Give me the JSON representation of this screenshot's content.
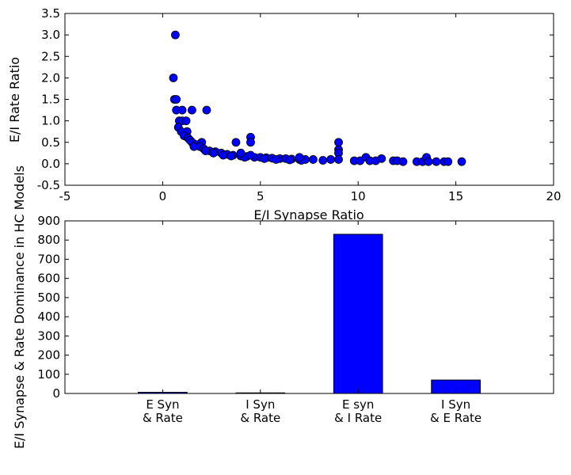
{
  "chart_data": [
    {
      "type": "scatter",
      "xlabel": "E/I Synapse Ratio",
      "ylabel": "E/I Rate Ratio",
      "xlim": [
        -5,
        20
      ],
      "ylim": [
        -0.5,
        3.5
      ],
      "xticks": [
        "-5",
        "0",
        "5",
        "10",
        "15",
        "20"
      ],
      "yticks": [
        "-0.5",
        "0.0",
        "0.5",
        "1.0",
        "1.5",
        "2.0",
        "2.5",
        "3.0",
        "3.5"
      ],
      "grid": false,
      "marker_color": "#0000ff",
      "points": [
        [
          0.55,
          2.0
        ],
        [
          0.65,
          3.0
        ],
        [
          0.6,
          1.5
        ],
        [
          0.7,
          1.5
        ],
        [
          0.7,
          1.25
        ],
        [
          1.0,
          1.25
        ],
        [
          1.5,
          1.25
        ],
        [
          2.25,
          1.25
        ],
        [
          0.85,
          1.0
        ],
        [
          1.0,
          1.0
        ],
        [
          1.2,
          1.0
        ],
        [
          0.8,
          0.85
        ],
        [
          0.95,
          0.75
        ],
        [
          1.25,
          0.75
        ],
        [
          1.1,
          0.65
        ],
        [
          1.3,
          0.6
        ],
        [
          1.4,
          0.55
        ],
        [
          1.5,
          0.5
        ],
        [
          1.7,
          0.45
        ],
        [
          2.0,
          0.5
        ],
        [
          1.6,
          0.4
        ],
        [
          1.9,
          0.4
        ],
        [
          2.1,
          0.35
        ],
        [
          2.4,
          0.3
        ],
        [
          2.7,
          0.28
        ],
        [
          3.0,
          0.25
        ],
        [
          3.3,
          0.22
        ],
        [
          3.6,
          0.2
        ],
        [
          4.0,
          0.18
        ],
        [
          4.3,
          0.17
        ],
        [
          4.7,
          0.15
        ],
        [
          5.0,
          0.15
        ],
        [
          5.3,
          0.14
        ],
        [
          5.6,
          0.13
        ],
        [
          6.0,
          0.12
        ],
        [
          6.3,
          0.12
        ],
        [
          6.6,
          0.11
        ],
        [
          7.0,
          0.1
        ],
        [
          7.3,
          0.1
        ],
        [
          7.7,
          0.1
        ],
        [
          2.2,
          0.3
        ],
        [
          2.6,
          0.25
        ],
        [
          3.1,
          0.2
        ],
        [
          3.5,
          0.18
        ],
        [
          4.2,
          0.15
        ],
        [
          4.5,
          0.2
        ],
        [
          5.2,
          0.12
        ],
        [
          5.8,
          0.1
        ],
        [
          6.5,
          0.09
        ],
        [
          7.1,
          0.08
        ],
        [
          3.75,
          0.5
        ],
        [
          4.5,
          0.62
        ],
        [
          4.5,
          0.5
        ],
        [
          4.0,
          0.25
        ],
        [
          7.0,
          0.15
        ],
        [
          8.2,
          0.08
        ],
        [
          8.6,
          0.1
        ],
        [
          9.0,
          0.5
        ],
        [
          9.0,
          0.33
        ],
        [
          9.0,
          0.25
        ],
        [
          9.0,
          0.1
        ],
        [
          9.8,
          0.07
        ],
        [
          10.1,
          0.07
        ],
        [
          10.4,
          0.15
        ],
        [
          10.6,
          0.07
        ],
        [
          10.9,
          0.07
        ],
        [
          11.2,
          0.12
        ],
        [
          11.8,
          0.07
        ],
        [
          12.0,
          0.07
        ],
        [
          12.3,
          0.05
        ],
        [
          13.0,
          0.05
        ],
        [
          13.3,
          0.05
        ],
        [
          13.5,
          0.15
        ],
        [
          13.6,
          0.05
        ],
        [
          14.0,
          0.05
        ],
        [
          14.4,
          0.05
        ],
        [
          14.6,
          0.05
        ],
        [
          15.3,
          0.05
        ]
      ]
    },
    {
      "type": "bar",
      "ylabel": "E/I Synapse & Rate Dominance in HC Models",
      "categories": [
        [
          "E Syn",
          "& Rate"
        ],
        [
          "I Syn",
          "& Rate"
        ],
        [
          "E syn",
          "& I Rate"
        ],
        [
          "I Syn",
          "& E Rate"
        ]
      ],
      "values": [
        6,
        3,
        830,
        70
      ],
      "ylim": [
        0,
        900
      ],
      "yticks": [
        "0",
        "100",
        "200",
        "300",
        "400",
        "500",
        "600",
        "700",
        "800",
        "900"
      ],
      "grid": false,
      "bar_color": "#0000ff"
    }
  ]
}
